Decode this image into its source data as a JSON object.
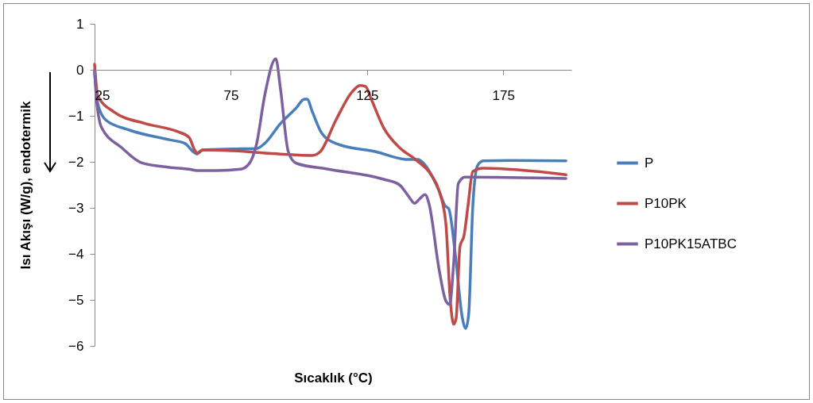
{
  "chart_data": {
    "type": "line",
    "xlabel": "Sıcaklık (°C)",
    "ylabel": "Isı Akışı (W/g), endotermik",
    "xlim": [
      25,
      200
    ],
    "xticks": [
      25,
      75,
      125,
      175
    ],
    "ylim": [
      -6,
      1
    ],
    "yticks": [
      -6,
      -5,
      -4,
      -3,
      -2,
      -1,
      0,
      1
    ],
    "legend": "right",
    "series": [
      {
        "name": "P",
        "color": "#4a7ebb",
        "x": [
          25,
          26.2,
          29.1,
          37.8,
          52.4,
          58.2,
          61.2,
          62.6,
          64.7,
          75.7,
          84.5,
          87.4,
          93.2,
          99,
          102,
          103,
          104.9,
          108.4,
          113.6,
          128.2,
          139.9,
          143.7,
          145.7,
          151.5,
          153.6,
          155,
          157.4,
          160,
          161.2,
          162.3,
          163.8,
          165.5,
          167.6,
          177.8,
          198
        ],
        "values": [
          -0.05,
          -0.74,
          -1.09,
          -1.31,
          -1.52,
          -1.6,
          -1.78,
          -1.83,
          -1.74,
          -1.72,
          -1.71,
          -1.6,
          -1.17,
          -0.83,
          -0.64,
          -0.64,
          -0.91,
          -1.38,
          -1.6,
          -1.78,
          -1.95,
          -1.95,
          -2.03,
          -2.64,
          -2.95,
          -3.02,
          -4.02,
          -5.4,
          -5.62,
          -5.31,
          -2.98,
          -2.09,
          -1.98,
          -1.97,
          -1.98
        ]
      },
      {
        "name": "P10PK",
        "color": "#be4b48",
        "x": [
          25,
          26.2,
          32,
          43.7,
          55.3,
          59.7,
          61.7,
          62.6,
          64.7,
          75.7,
          93.2,
          104.9,
          107.8,
          113.6,
          119.5,
          122.4,
          124.4,
          126.7,
          131.1,
          136.9,
          142.8,
          148.6,
          151.5,
          153.9,
          155.6,
          156.8,
          157.7,
          159.1,
          160.6,
          162,
          163.8,
          167.6,
          198
        ],
        "values": [
          0.12,
          -0.57,
          -0.91,
          -1.17,
          -1.34,
          -1.47,
          -1.74,
          -1.81,
          -1.74,
          -1.76,
          -1.83,
          -1.86,
          -1.78,
          -1.09,
          -0.48,
          -0.34,
          -0.36,
          -0.66,
          -1.26,
          -1.69,
          -1.95,
          -2.29,
          -2.64,
          -3.33,
          -5.05,
          -5.53,
          -5.4,
          -3.84,
          -3.6,
          -2.98,
          -2.21,
          -2.14,
          -2.28
        ]
      },
      {
        "name": "P10PK15ATBC",
        "color": "#7d60a0",
        "x": [
          25,
          25.6,
          27.6,
          34.9,
          42.2,
          52.4,
          59.7,
          62.6,
          69.9,
          78.6,
          81.6,
          84.5,
          87.4,
          91.5,
          93.2,
          96.1,
          99,
          110.7,
          131.1,
          136.9,
          139.9,
          142.5,
          144.2,
          146.3,
          147.7,
          151.5,
          153.9,
          155.3,
          156.8,
          158.5,
          160.9,
          198
        ],
        "values": [
          0,
          -0.57,
          -1.26,
          -1.69,
          -2.02,
          -2.12,
          -2.16,
          -2.19,
          -2.19,
          -2.16,
          -2.05,
          -1.6,
          -0.57,
          0.24,
          -0.4,
          -1.78,
          -2.03,
          -2.16,
          -2.38,
          -2.5,
          -2.72,
          -2.9,
          -2.81,
          -2.71,
          -2.9,
          -4.36,
          -5.02,
          -5.1,
          -4.19,
          -2.47,
          -2.33,
          -2.36
        ]
      }
    ]
  }
}
